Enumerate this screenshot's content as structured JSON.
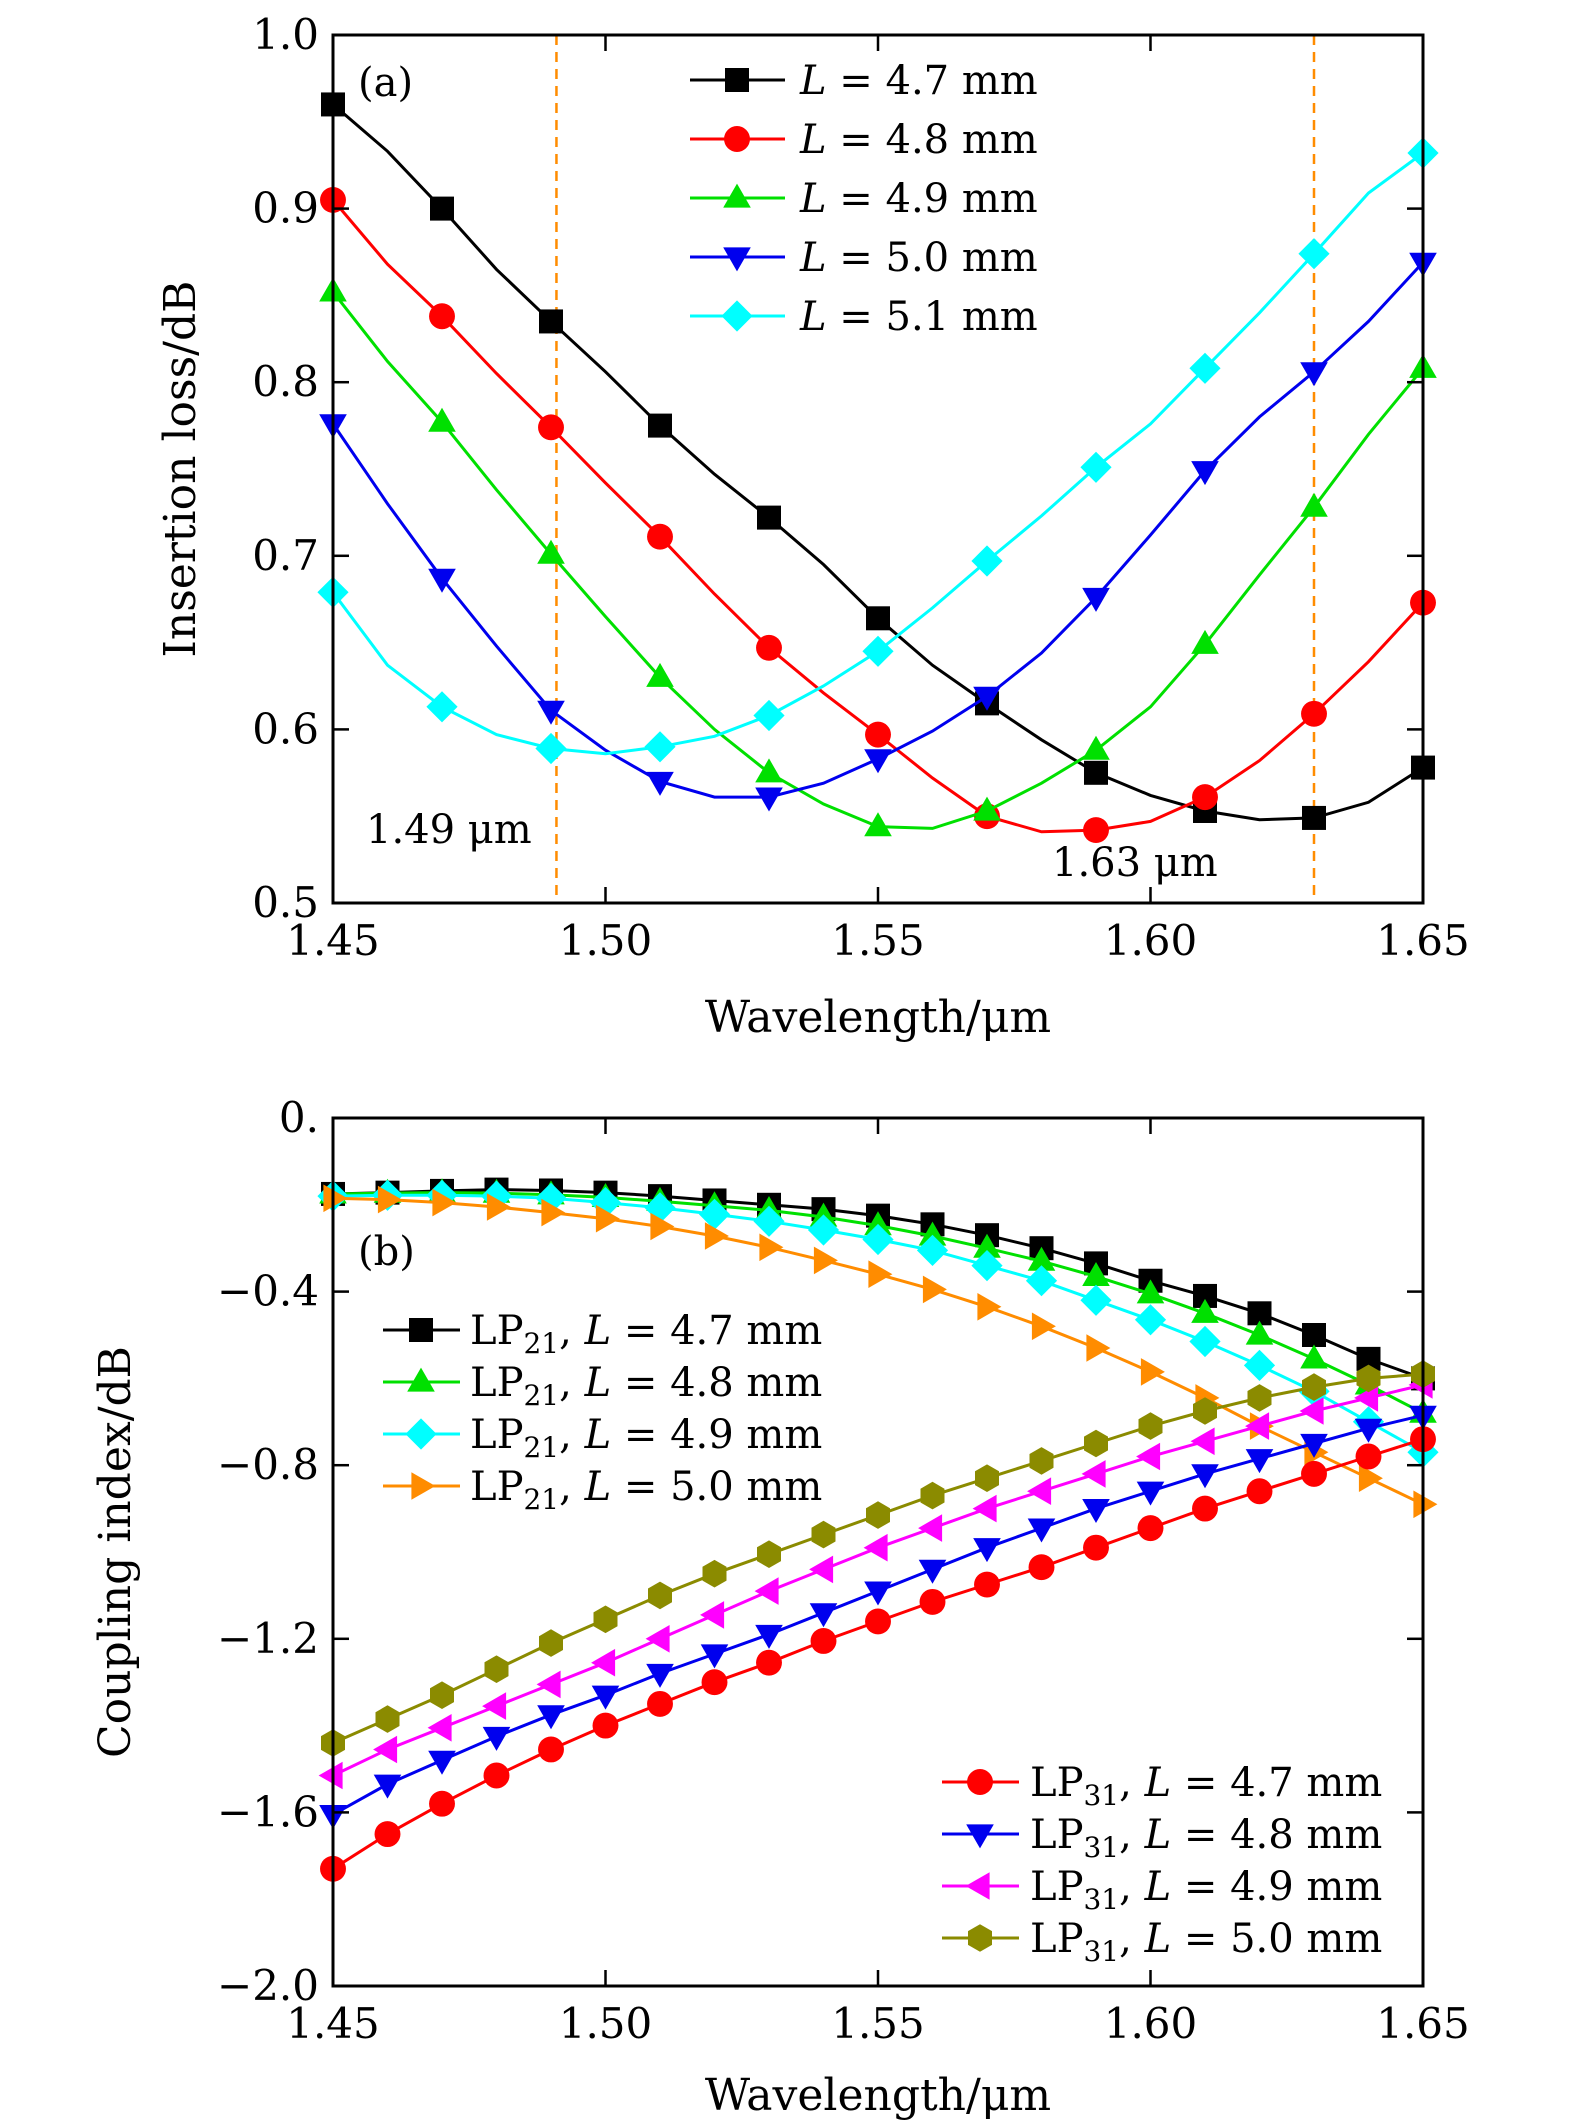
{
  "figure": {
    "panels": [
      "(a)",
      "(b)"
    ]
  },
  "chart_data": [
    {
      "type": "line",
      "panel_label": "(a)",
      "xlabel": "Wavelength/μm",
      "ylabel": "Insertion loss/dB",
      "xlim": [
        1.45,
        1.65
      ],
      "ylim": [
        0.5,
        1.0
      ],
      "xticks": [
        1.45,
        1.5,
        1.55,
        1.6,
        1.65
      ],
      "xtick_labels": [
        "1.45",
        "1.50",
        "1.55",
        "1.60",
        "1.65"
      ],
      "yticks": [
        0.5,
        0.6,
        0.7,
        0.8,
        0.9,
        1.0
      ],
      "ytick_labels": [
        "0.5",
        "0.6",
        "0.7",
        "0.8",
        "0.9",
        "1.0"
      ],
      "legend_position": "top-center",
      "annotations": [
        {
          "text": "1.49 μm",
          "x": 1.491
        },
        {
          "text": "1.63 μm",
          "x": 1.63
        }
      ],
      "x": [
        1.45,
        1.46,
        1.47,
        1.48,
        1.49,
        1.5,
        1.51,
        1.52,
        1.53,
        1.54,
        1.55,
        1.56,
        1.57,
        1.58,
        1.59,
        1.6,
        1.61,
        1.62,
        1.63,
        1.64,
        1.65
      ],
      "series": [
        {
          "name": "L = 4.7 mm",
          "name_italic": "L",
          "name_rest": " = 4.7 mm",
          "color": "#000000",
          "marker": "square",
          "values": [
            0.96,
            0.933,
            0.9,
            0.865,
            0.835,
            0.806,
            0.775,
            0.747,
            0.722,
            0.695,
            0.664,
            0.637,
            0.615,
            0.594,
            0.575,
            0.562,
            0.553,
            0.548,
            0.549,
            0.558,
            0.578
          ]
        },
        {
          "name": "L = 4.8 mm",
          "name_italic": "L",
          "name_rest": " = 4.8 mm",
          "color": "#ff0000",
          "marker": "circle",
          "values": [
            0.905,
            0.868,
            0.838,
            0.805,
            0.774,
            0.742,
            0.711,
            0.678,
            0.647,
            0.621,
            0.597,
            0.572,
            0.55,
            0.541,
            0.542,
            0.547,
            0.561,
            0.582,
            0.609,
            0.639,
            0.673
          ]
        },
        {
          "name": "L = 4.9 mm",
          "name_italic": "L",
          "name_rest": " = 4.9 mm",
          "color": "#00e000",
          "marker": "triangle-up",
          "values": [
            0.852,
            0.812,
            0.777,
            0.738,
            0.701,
            0.665,
            0.63,
            0.6,
            0.575,
            0.557,
            0.544,
            0.543,
            0.553,
            0.569,
            0.588,
            0.613,
            0.649,
            0.689,
            0.728,
            0.77,
            0.808
          ]
        },
        {
          "name": "L = 5.0 mm",
          "name_italic": "L",
          "name_rest": " = 5.0 mm",
          "color": "#0000ee",
          "marker": "triangle-down",
          "values": [
            0.776,
            0.73,
            0.687,
            0.648,
            0.611,
            0.588,
            0.57,
            0.561,
            0.561,
            0.569,
            0.583,
            0.599,
            0.619,
            0.644,
            0.676,
            0.712,
            0.749,
            0.78,
            0.806,
            0.835,
            0.869
          ]
        },
        {
          "name": "L = 5.1 mm",
          "name_italic": "L",
          "name_rest": " = 5.1 mm",
          "color": "#00ffff",
          "marker": "diamond",
          "values": [
            0.679,
            0.637,
            0.613,
            0.597,
            0.589,
            0.586,
            0.59,
            0.596,
            0.608,
            0.625,
            0.645,
            0.67,
            0.697,
            0.723,
            0.751,
            0.776,
            0.808,
            0.84,
            0.874,
            0.909,
            0.932
          ]
        }
      ]
    },
    {
      "type": "line",
      "panel_label": "(b)",
      "xlabel": "Wavelength/μm",
      "ylabel": "Coupling index/dB",
      "xlim": [
        1.45,
        1.65
      ],
      "ylim": [
        -2.0,
        0.0
      ],
      "xticks": [
        1.45,
        1.5,
        1.55,
        1.6,
        1.65
      ],
      "xtick_labels": [
        "1.45",
        "1.50",
        "1.55",
        "1.60",
        "1.65"
      ],
      "yticks": [
        0.0,
        -0.4,
        -0.8,
        -1.2,
        -1.6,
        -2.0
      ],
      "ytick_labels": [
        "0.",
        "−0.4",
        "−0.8",
        "−1.2",
        "−1.6",
        "−2.0"
      ],
      "legend_positions": [
        "upper-left",
        "lower-right"
      ],
      "x": [
        1.45,
        1.46,
        1.47,
        1.48,
        1.49,
        1.5,
        1.51,
        1.52,
        1.53,
        1.54,
        1.55,
        1.56,
        1.57,
        1.58,
        1.59,
        1.6,
        1.61,
        1.62,
        1.63,
        1.64,
        1.65
      ],
      "series": [
        {
          "name": "LP21, L = 4.7 mm",
          "name_pre": "LP",
          "name_sub": "21",
          "name_mid": ", ",
          "name_italic": "L",
          "name_rest": " = 4.7 mm",
          "color": "#000000",
          "marker": "square",
          "legend_group": 0,
          "values": [
            -0.175,
            -0.172,
            -0.168,
            -0.165,
            -0.167,
            -0.172,
            -0.18,
            -0.19,
            -0.2,
            -0.21,
            -0.225,
            -0.245,
            -0.27,
            -0.3,
            -0.335,
            -0.375,
            -0.41,
            -0.45,
            -0.5,
            -0.555,
            -0.6
          ]
        },
        {
          "name": "LP21, L = 4.8 mm",
          "name_pre": "LP",
          "name_sub": "21",
          "name_mid": ", ",
          "name_italic": "L",
          "name_rest": " = 4.8 mm",
          "color": "#00e000",
          "marker": "triangle-up",
          "legend_group": 0,
          "values": [
            -0.175,
            -0.173,
            -0.172,
            -0.173,
            -0.177,
            -0.183,
            -0.192,
            -0.202,
            -0.213,
            -0.228,
            -0.248,
            -0.272,
            -0.3,
            -0.33,
            -0.365,
            -0.405,
            -0.45,
            -0.5,
            -0.555,
            -0.615,
            -0.68
          ]
        },
        {
          "name": "LP21, L = 4.9 mm",
          "name_pre": "LP",
          "name_sub": "21",
          "name_mid": ", ",
          "name_italic": "L",
          "name_rest": " = 4.9 mm",
          "color": "#00ffff",
          "marker": "diamond",
          "legend_group": 0,
          "values": [
            -0.18,
            -0.178,
            -0.178,
            -0.18,
            -0.185,
            -0.195,
            -0.207,
            -0.222,
            -0.238,
            -0.258,
            -0.28,
            -0.305,
            -0.34,
            -0.375,
            -0.42,
            -0.465,
            -0.515,
            -0.57,
            -0.63,
            -0.7,
            -0.77
          ]
        },
        {
          "name": "LP21, L = 5.0 mm",
          "name_pre": "LP",
          "name_sub": "21",
          "name_mid": ", ",
          "name_italic": "L",
          "name_rest": " = 5.0 mm",
          "color": "#ff8c00",
          "marker": "triangle-right",
          "legend_group": 0,
          "values": [
            -0.185,
            -0.188,
            -0.195,
            -0.205,
            -0.218,
            -0.232,
            -0.25,
            -0.272,
            -0.298,
            -0.328,
            -0.36,
            -0.395,
            -0.435,
            -0.48,
            -0.53,
            -0.585,
            -0.645,
            -0.71,
            -0.77,
            -0.83,
            -0.89
          ]
        },
        {
          "name": "LP31, L = 4.7 mm",
          "name_pre": "LP",
          "name_sub": "31",
          "name_mid": ", ",
          "name_italic": "L",
          "name_rest": " = 4.7 mm",
          "color": "#ff0000",
          "marker": "circle",
          "legend_group": 1,
          "values": [
            -1.73,
            -1.65,
            -1.58,
            -1.515,
            -1.455,
            -1.4,
            -1.35,
            -1.3,
            -1.255,
            -1.205,
            -1.16,
            -1.115,
            -1.075,
            -1.035,
            -0.99,
            -0.945,
            -0.9,
            -0.86,
            -0.82,
            -0.78,
            -0.74
          ]
        },
        {
          "name": "LP31, L = 4.8 mm",
          "name_pre": "LP",
          "name_sub": "31",
          "name_mid": ", ",
          "name_italic": "L",
          "name_rest": " = 4.8 mm",
          "color": "#0000ee",
          "marker": "triangle-down",
          "legend_group": 1,
          "values": [
            -1.605,
            -1.535,
            -1.48,
            -1.425,
            -1.375,
            -1.33,
            -1.28,
            -1.235,
            -1.19,
            -1.14,
            -1.09,
            -1.04,
            -0.99,
            -0.945,
            -0.9,
            -0.86,
            -0.82,
            -0.785,
            -0.75,
            -0.715,
            -0.685
          ]
        },
        {
          "name": "LP31, L = 4.9 mm",
          "name_pre": "LP",
          "name_sub": "31",
          "name_mid": ", ",
          "name_italic": "L",
          "name_rest": " = 4.9 mm",
          "color": "#ff00ff",
          "marker": "triangle-left",
          "legend_group": 1,
          "values": [
            -1.515,
            -1.455,
            -1.405,
            -1.355,
            -1.305,
            -1.255,
            -1.2,
            -1.145,
            -1.09,
            -1.04,
            -0.99,
            -0.945,
            -0.9,
            -0.86,
            -0.82,
            -0.78,
            -0.745,
            -0.71,
            -0.675,
            -0.645,
            -0.615
          ]
        },
        {
          "name": "LP31, L = 5.0 mm",
          "name_pre": "LP",
          "name_sub": "31",
          "name_mid": ", ",
          "name_italic": "L",
          "name_rest": " = 5.0 mm",
          "color": "#8b8b00",
          "marker": "hexagon",
          "legend_group": 1,
          "values": [
            -1.44,
            -1.385,
            -1.33,
            -1.27,
            -1.21,
            -1.155,
            -1.1,
            -1.05,
            -1.005,
            -0.96,
            -0.915,
            -0.87,
            -0.83,
            -0.79,
            -0.75,
            -0.71,
            -0.675,
            -0.645,
            -0.62,
            -0.6,
            -0.59
          ]
        }
      ]
    }
  ]
}
